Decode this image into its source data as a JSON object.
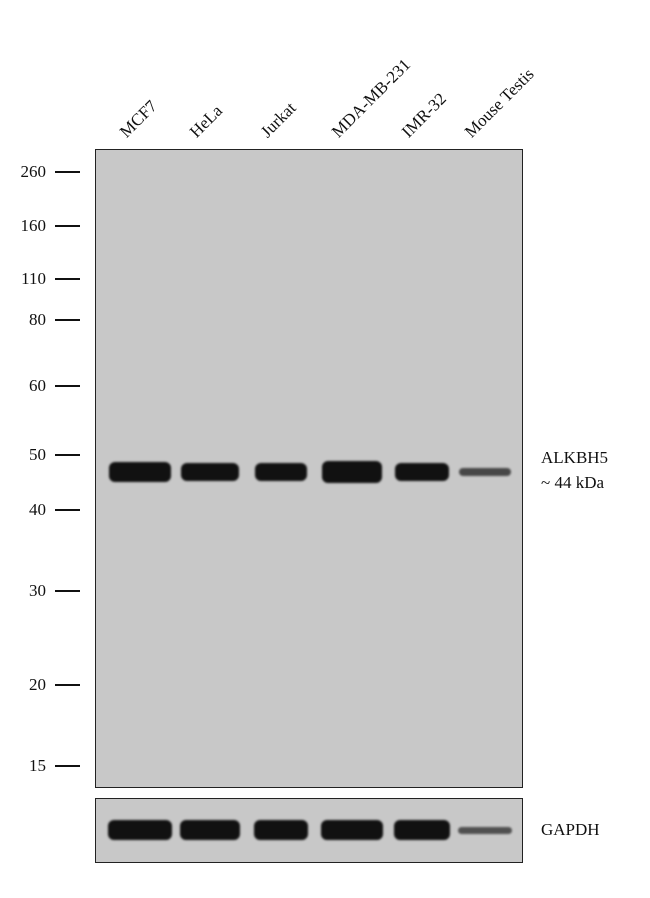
{
  "lanes": [
    "MCF7",
    "HeLa",
    "Jurkat",
    "MDA-MB-231",
    "IMR-32",
    "Mouse Testis"
  ],
  "markers": [
    "260",
    "160",
    "110",
    "80",
    "60",
    "50",
    "40",
    "30",
    "20",
    "15"
  ],
  "target": {
    "name": "ALKBH5",
    "size": "~ 44 kDa",
    "relative_intensity": [
      0.9,
      0.8,
      0.85,
      1.0,
      0.8,
      0.4
    ]
  },
  "loading_control": {
    "name": "GAPDH",
    "relative_intensity": [
      1.0,
      1.0,
      1.0,
      1.0,
      1.0,
      0.35
    ]
  },
  "colors": {
    "membrane": "#c8c8c8",
    "band": "#111111"
  }
}
